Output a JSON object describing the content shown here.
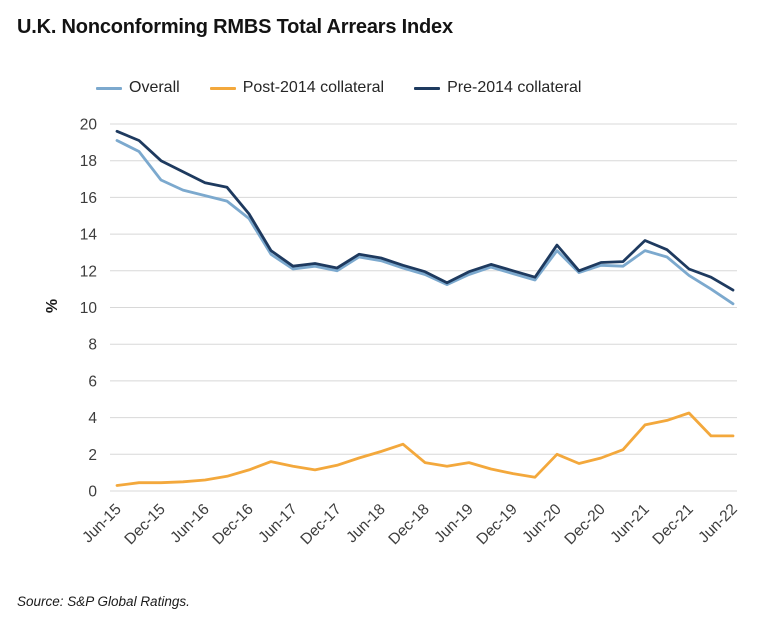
{
  "header": {
    "title": "U.K. Nonconforming RMBS Total Arrears Index"
  },
  "footer": {
    "source": "Source: S&P Global Ratings."
  },
  "chart_data": {
    "type": "line",
    "title": "U.K. Nonconforming RMBS Total Arrears Index",
    "xlabel": "",
    "ylabel": "%",
    "ylim": [
      0,
      20
    ],
    "ytick_step": 2,
    "grid": "horizontal",
    "grid_color": "#D8D8D8",
    "legend_position": "top",
    "categories": [
      "Jun-15",
      "Sep-15",
      "Dec-15",
      "Mar-16",
      "Jun-16",
      "Sep-16",
      "Dec-16",
      "Mar-17",
      "Jun-17",
      "Sep-17",
      "Dec-17",
      "Mar-18",
      "Jun-18",
      "Sep-18",
      "Dec-18",
      "Mar-19",
      "Jun-19",
      "Sep-19",
      "Dec-19",
      "Mar-20",
      "Jun-20",
      "Sep-20",
      "Dec-20",
      "Mar-21",
      "Jun-21",
      "Sep-21",
      "Dec-21",
      "Mar-22",
      "Jun-22"
    ],
    "xtick_labels": [
      "Jun-15",
      "Dec-15",
      "Jun-16",
      "Dec-16",
      "Jun-17",
      "Dec-17",
      "Jun-18",
      "Dec-18",
      "Jun-19",
      "Dec-19",
      "Jun-20",
      "Dec-20",
      "Jun-21",
      "Dec-21",
      "Jun-22"
    ],
    "series": [
      {
        "name": "Overall",
        "color": "#7CA9CE",
        "values": [
          19.1,
          18.5,
          16.95,
          16.4,
          16.1,
          15.8,
          14.85,
          12.9,
          12.1,
          12.25,
          12.0,
          12.75,
          12.55,
          12.15,
          11.8,
          11.25,
          11.8,
          12.2,
          11.85,
          11.5,
          13.1,
          11.9,
          12.3,
          12.25,
          13.1,
          12.75,
          11.75,
          11.0,
          10.2
        ]
      },
      {
        "name": "Post-2014 collateral",
        "color": "#F3A83C",
        "values": [
          0.3,
          0.45,
          0.45,
          0.5,
          0.6,
          0.8,
          1.15,
          1.6,
          1.35,
          1.15,
          1.4,
          1.8,
          2.15,
          2.55,
          1.55,
          1.35,
          1.55,
          1.2,
          0.95,
          0.75,
          2.0,
          1.5,
          1.8,
          2.25,
          3.6,
          3.85,
          4.25,
          3.0,
          3.0
        ]
      },
      {
        "name": "Pre-2014 collateral",
        "color": "#1E3A5F",
        "values": [
          19.6,
          19.1,
          18.0,
          17.4,
          16.8,
          16.55,
          15.1,
          13.1,
          12.25,
          12.4,
          12.15,
          12.9,
          12.7,
          12.3,
          11.95,
          11.35,
          11.95,
          12.35,
          12.0,
          11.65,
          13.4,
          12.0,
          12.45,
          12.5,
          13.65,
          13.15,
          12.1,
          11.65,
          10.95
        ]
      }
    ]
  }
}
